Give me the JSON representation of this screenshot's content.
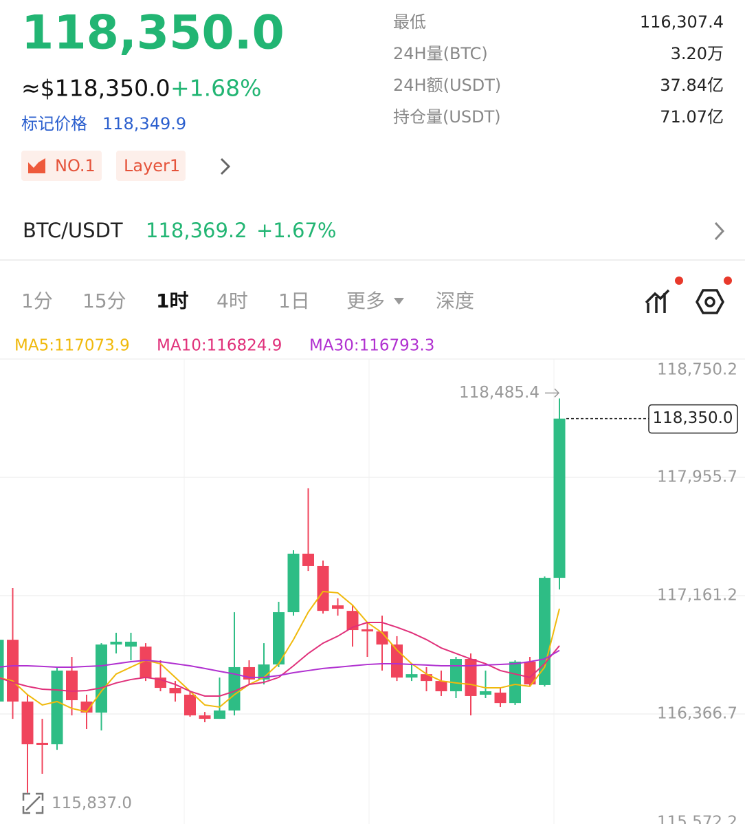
{
  "header": {
    "price": "118,350.0",
    "usd_price": "≈$118,350.0",
    "change": "+1.68%",
    "mark_label": "标记价格",
    "mark_price": "118,349.9",
    "tags": [
      "NO.1",
      "Layer1"
    ]
  },
  "stats": [
    {
      "label": "最低",
      "value": "116,307.4"
    },
    {
      "label": "24H量(BTC)",
      "value": "3.20万"
    },
    {
      "label": "24H额(USDT)",
      "value": "37.84亿"
    },
    {
      "label": "持仓量(USDT)",
      "value": "71.07亿"
    }
  ],
  "pair": {
    "name": "BTC/USDT",
    "price": "118,369.2",
    "change": "+1.67%"
  },
  "tabs": [
    "1分",
    "15分",
    "1时",
    "4时",
    "1日",
    "更多",
    "深度"
  ],
  "active_tab": 2,
  "chart_data": {
    "type": "candlestick",
    "up_color": "#2ebd85",
    "down_color": "#f0445c",
    "candles": {
      "open": [
        116450,
        116865,
        116450,
        116173,
        116163,
        116658,
        116450,
        116376,
        116833,
        116819,
        116819,
        116611,
        116542,
        116496,
        116357,
        116334,
        116390,
        116681,
        116598,
        116699,
        117050,
        117443,
        117360,
        117096,
        117059,
        116935,
        116921,
        116833,
        116611,
        116634,
        116588,
        116519,
        116736,
        116496,
        116510,
        116440,
        116718,
        116561,
        117281
      ],
      "high": [
        116889,
        117212,
        116496,
        116334,
        116681,
        116750,
        116496,
        116842,
        116912,
        116912,
        116842,
        116727,
        116588,
        116519,
        116380,
        116611,
        117050,
        116727,
        116842,
        117120,
        117466,
        117882,
        117397,
        117143,
        117096,
        116981,
        117027,
        116889,
        116704,
        116681,
        116658,
        116750,
        116773,
        116658,
        116542,
        116727,
        116750,
        117290,
        118485.4
      ],
      "low": [
        116404,
        116334,
        115837.0,
        115965,
        116126,
        116357,
        116265,
        116256,
        116773,
        116727,
        116588,
        116519,
        116450,
        116348,
        116311,
        116334,
        116357,
        116565,
        116565,
        116681,
        117027,
        117327,
        117041,
        117027,
        116819,
        116750,
        116658,
        116588,
        116588,
        116519,
        116487,
        116473,
        116357,
        116473,
        116413,
        116427,
        116551,
        116551,
        117203
      ],
      "close": [
        116865,
        116450,
        116163,
        116159,
        116658,
        116459,
        116376,
        116833,
        116852,
        116852,
        116611,
        116542,
        116505,
        116357,
        116334,
        116390,
        116681,
        116598,
        116699,
        117050,
        117443,
        117360,
        117059,
        117073,
        116930,
        116921,
        116833,
        116611,
        116634,
        116588,
        116519,
        116736,
        116487,
        116519,
        116440,
        116718,
        116565,
        117281,
        118350.0
      ]
    },
    "ma": [
      {
        "label": "MA5:117073.9",
        "color": "#f0b90b",
        "values": [
          116612,
          116588,
          116496,
          116427,
          116450,
          116404,
          116381,
          116519,
          116635,
          116681,
          116727,
          116704,
          116612,
          116519,
          116427,
          116413,
          116496,
          116565,
          116612,
          116704,
          116866,
          117050,
          117189,
          117180,
          117097,
          116981,
          116912,
          116796,
          116704,
          116635,
          116588,
          116575,
          116565,
          116542,
          116542,
          116565,
          116552,
          116681,
          117073.9
        ]
      },
      {
        "label": "MA10:116824.9",
        "color": "#e0307a",
        "values": [
          116612,
          116579,
          116552,
          116533,
          116528,
          116519,
          116524,
          116542,
          116575,
          116598,
          116612,
          116598,
          116565,
          116519,
          116487,
          116487,
          116519,
          116565,
          116579,
          116612,
          116690,
          116773,
          116842,
          116889,
          116949,
          116981,
          116981,
          116949,
          116912,
          116866,
          116810,
          116773,
          116736,
          116704,
          116658,
          116635,
          116612,
          116704,
          116824.9
        ]
      },
      {
        "label": "MA30:116793.3",
        "color": "#b030d0",
        "values": [
          116681,
          116690,
          116690,
          116686,
          116681,
          116681,
          116686,
          116690,
          116704,
          116718,
          116727,
          116718,
          116704,
          116690,
          116672,
          116653,
          116635,
          116612,
          116612,
          116625,
          116644,
          116658,
          116672,
          116681,
          116690,
          116699,
          116704,
          116704,
          116699,
          116695,
          116690,
          116690,
          116690,
          116695,
          116699,
          116704,
          116718,
          116736,
          116793.3
        ]
      }
    ],
    "ylim": [
      115572.2,
      118750.2
    ],
    "yticks": [
      {
        "value": 118750.2,
        "label": "118,750.2"
      },
      {
        "value": 117955.7,
        "label": "117,955.7"
      },
      {
        "value": 117161.2,
        "label": "117,161.2"
      },
      {
        "value": 116366.7,
        "label": "116,366.7"
      },
      {
        "value": 115572.2,
        "label": "115,572.2"
      }
    ],
    "grid": true,
    "max_label": "118,485.4",
    "min_label": "115,837.0",
    "last_label": "118,350.0"
  }
}
